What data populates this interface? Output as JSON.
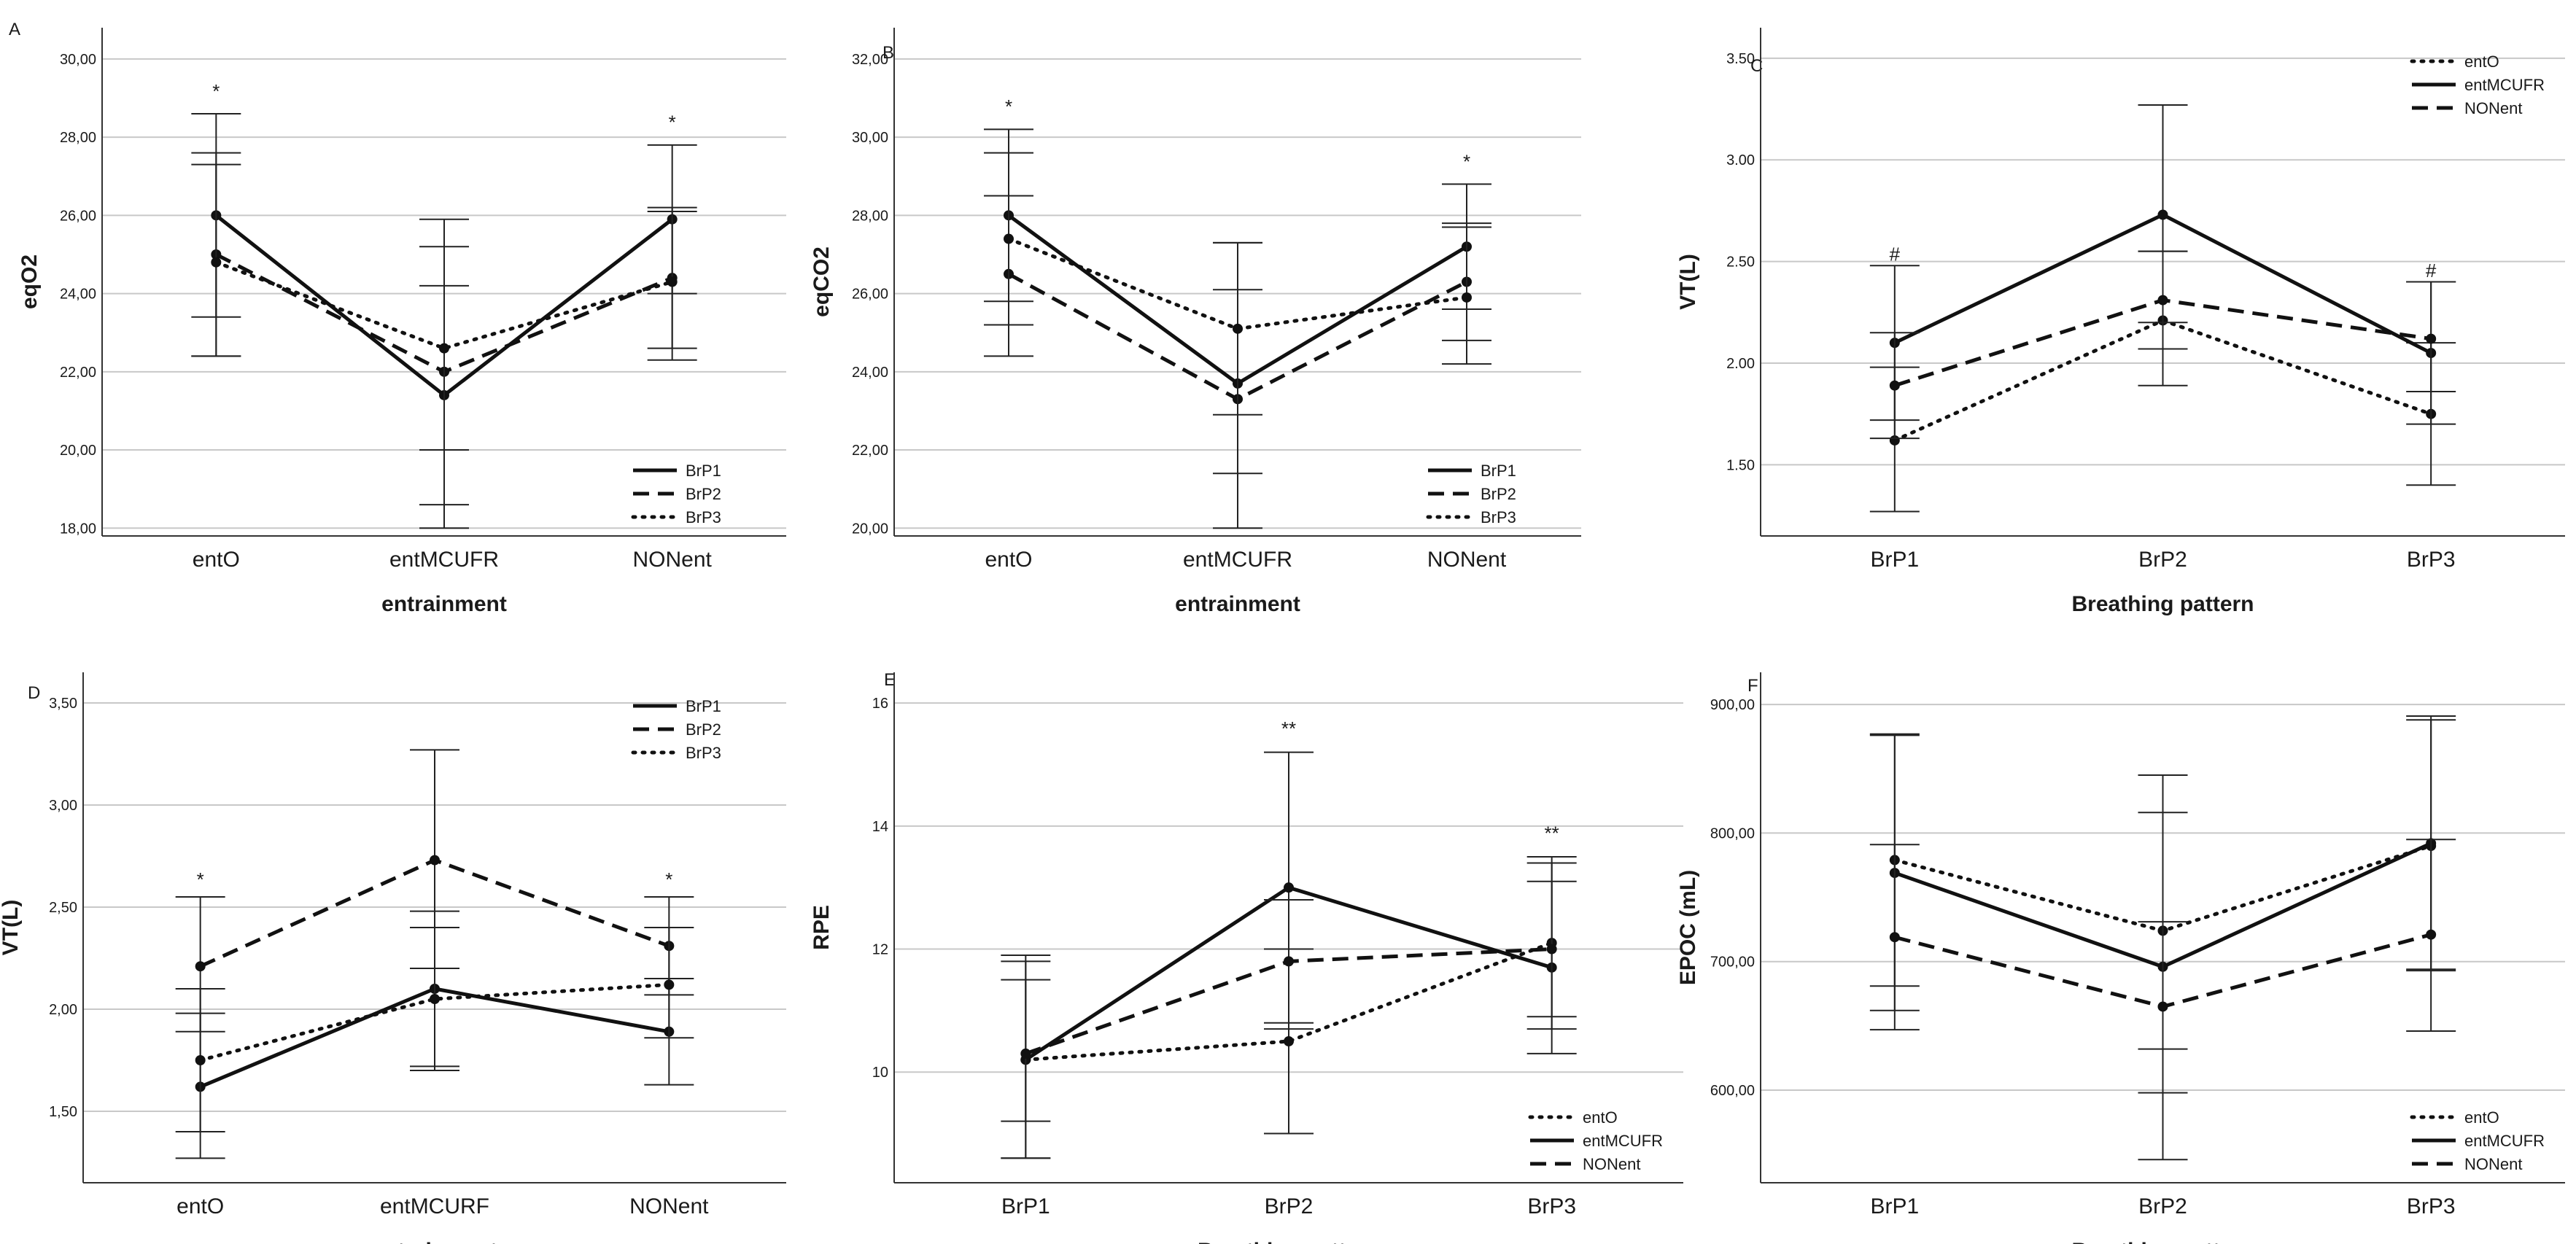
{
  "chart_data": [
    {
      "panel": "A",
      "type": "line",
      "ylabel": "eqO2",
      "xlabel": "entrainment",
      "categories": [
        "entO",
        "entMCUFR",
        "NONent"
      ],
      "ylim": [
        17.8,
        30.8
      ],
      "yticks": [
        "18,00",
        "20,00",
        "22,00",
        "24,00",
        "26,00",
        "28,00",
        "30,00"
      ],
      "legend_position": "bottom-right",
      "series": [
        {
          "name": "BrP1",
          "style": "solid",
          "values": [
            26.0,
            21.4,
            25.9
          ],
          "ci_low": [
            23.4,
            18.6,
            24.0
          ],
          "ci_high": [
            28.6,
            24.2,
            27.8
          ]
        },
        {
          "name": "BrP2",
          "style": "dashed",
          "values": [
            25.0,
            22.0,
            24.4
          ],
          "ci_low": [
            22.4,
            18.0,
            22.6
          ],
          "ci_high": [
            27.6,
            25.9,
            26.2
          ]
        },
        {
          "name": "BrP3",
          "style": "dotted",
          "values": [
            24.8,
            22.6,
            24.3
          ],
          "ci_low": [
            22.4,
            20.0,
            22.3
          ],
          "ci_high": [
            27.3,
            25.2,
            26.1
          ]
        }
      ],
      "annotations": [
        {
          "category": "entO",
          "text": "*",
          "y": 29.2
        },
        {
          "category": "NONent",
          "text": "*",
          "y": 28.4
        }
      ]
    },
    {
      "panel": "B",
      "type": "line",
      "ylabel": "eqCO2",
      "xlabel": "entrainment",
      "categories": [
        "entO",
        "entMCUFR",
        "NONent"
      ],
      "ylim": [
        19.8,
        32.8
      ],
      "yticks": [
        "20,00",
        "22,00",
        "24,00",
        "26,00",
        "28,00",
        "30,00",
        "32,00"
      ],
      "legend_position": "bottom-right",
      "series": [
        {
          "name": "BrP1",
          "style": "solid",
          "values": [
            28.0,
            23.7,
            27.2
          ],
          "ci_low": [
            25.8,
            20.0,
            25.6
          ],
          "ci_high": [
            30.2,
            27.3,
            28.8
          ]
        },
        {
          "name": "BrP2",
          "style": "dashed",
          "values": [
            26.5,
            23.3,
            26.3
          ],
          "ci_low": [
            24.4,
            21.4,
            24.2
          ],
          "ci_high": [
            28.5,
            26.1,
            27.8
          ]
        },
        {
          "name": "BrP3",
          "style": "dotted",
          "values": [
            27.4,
            25.1,
            25.9
          ],
          "ci_low": [
            25.2,
            22.9,
            24.8
          ],
          "ci_high": [
            29.6,
            27.3,
            27.7
          ]
        }
      ],
      "annotations": [
        {
          "category": "entO",
          "text": "*",
          "y": 30.8
        },
        {
          "category": "NONent",
          "text": "*",
          "y": 29.4
        }
      ]
    },
    {
      "panel": "C",
      "type": "line",
      "ylabel": "VT(L)",
      "xlabel": "Breathing pattern",
      "categories": [
        "BrP1",
        "BrP2",
        "BrP3"
      ],
      "ylim": [
        1.15,
        3.65
      ],
      "yticks": [
        "1.50",
        "2.00",
        "2.50",
        "3.00",
        "3.50"
      ],
      "legend_position": "top-right",
      "series": [
        {
          "name": "entO",
          "style": "dotted",
          "values": [
            1.62,
            2.21,
            1.75
          ],
          "ci_low": [
            1.27,
            1.89,
            1.4
          ],
          "ci_high": [
            1.98,
            2.55,
            2.1
          ]
        },
        {
          "name": "entMCUFR",
          "style": "solid",
          "values": [
            2.1,
            2.73,
            2.05
          ],
          "ci_low": [
            1.72,
            2.2,
            1.7
          ],
          "ci_high": [
            2.48,
            3.27,
            2.4
          ]
        },
        {
          "name": "NONent",
          "style": "dashed",
          "values": [
            1.89,
            2.31,
            2.12
          ],
          "ci_low": [
            1.63,
            2.07,
            1.86
          ],
          "ci_high": [
            2.15,
            2.55,
            2.4
          ]
        }
      ],
      "annotations": [
        {
          "category": "BrP1",
          "text": "#",
          "y": 2.54
        },
        {
          "category": "BrP3",
          "text": "#",
          "y": 2.46
        }
      ]
    },
    {
      "panel": "D",
      "type": "line",
      "ylabel": "VT(L)",
      "xlabel": "entrainment",
      "categories": [
        "entO",
        "entMCURF",
        "NONent"
      ],
      "ylim": [
        1.15,
        3.65
      ],
      "yticks": [
        "1,50",
        "2,00",
        "2,50",
        "3,00",
        "3,50"
      ],
      "legend_position": "top-right",
      "series": [
        {
          "name": "BrP1",
          "style": "solid",
          "values": [
            1.62,
            2.1,
            1.89
          ],
          "ci_low": [
            1.27,
            1.72,
            1.63
          ],
          "ci_high": [
            1.98,
            2.48,
            2.15
          ]
        },
        {
          "name": "BrP2",
          "style": "dashed",
          "values": [
            2.21,
            2.73,
            2.31
          ],
          "ci_low": [
            1.89,
            2.2,
            2.07
          ],
          "ci_high": [
            2.55,
            3.27,
            2.55
          ]
        },
        {
          "name": "BrP3",
          "style": "dotted",
          "values": [
            1.75,
            2.05,
            2.12
          ],
          "ci_low": [
            1.4,
            1.7,
            1.86
          ],
          "ci_high": [
            2.1,
            2.4,
            2.4
          ]
        }
      ],
      "annotations": [
        {
          "category": "entO",
          "text": "*",
          "y": 2.64
        },
        {
          "category": "NONent",
          "text": "*",
          "y": 2.64
        }
      ]
    },
    {
      "panel": "E",
      "type": "line",
      "ylabel": "RPE",
      "xlabel": "Breathing pattern",
      "categories": [
        "BrP1",
        "BrP2",
        "BrP3"
      ],
      "ylim": [
        8.2,
        16.5
      ],
      "yticks": [
        "10",
        "12",
        "14",
        "16"
      ],
      "legend_position": "bottom-right",
      "series": [
        {
          "name": "entO",
          "style": "dotted",
          "values": [
            10.2,
            10.5,
            12.1
          ],
          "ci_low": [
            8.6,
            9.0,
            10.7
          ],
          "ci_high": [
            11.9,
            12.0,
            13.5
          ]
        },
        {
          "name": "entMCUFR",
          "style": "solid",
          "values": [
            10.2,
            13.0,
            11.7
          ],
          "ci_low": [
            8.6,
            10.8,
            10.3
          ],
          "ci_high": [
            11.8,
            15.2,
            13.1
          ]
        },
        {
          "name": "NONent",
          "style": "dashed",
          "values": [
            10.3,
            11.8,
            12.0
          ],
          "ci_low": [
            9.2,
            10.7,
            10.9
          ],
          "ci_high": [
            11.5,
            12.8,
            13.4
          ]
        }
      ],
      "annotations": [
        {
          "category": "BrP2",
          "text": "**",
          "y": 15.6
        },
        {
          "category": "BrP3",
          "text": "**",
          "y": 13.9
        }
      ]
    },
    {
      "panel": "F",
      "type": "line",
      "ylabel": "EPOC (mL)",
      "xlabel": "Breathing pattern",
      "categories": [
        "BrP1",
        "BrP2",
        "BrP3"
      ],
      "ylim": [
        528,
        925
      ],
      "yticks": [
        "600,00",
        "700,00",
        "800,00",
        "900,00"
      ],
      "legend_position": "bottom-right",
      "series": [
        {
          "name": "entO",
          "style": "dotted",
          "values": [
            779,
            724,
            790
          ],
          "ci_low": [
            681,
            632,
            693
          ],
          "ci_high": [
            877,
            816,
            888
          ]
        },
        {
          "name": "entMCUFR",
          "style": "solid",
          "values": [
            769,
            696,
            792
          ],
          "ci_low": [
            662,
            598,
            694
          ],
          "ci_high": [
            876,
            845,
            891
          ]
        },
        {
          "name": "NONent",
          "style": "dashed",
          "values": [
            719,
            665,
            721
          ],
          "ci_low": [
            647,
            546,
            646
          ],
          "ci_high": [
            791,
            731,
            795
          ]
        }
      ],
      "annotations": []
    }
  ]
}
